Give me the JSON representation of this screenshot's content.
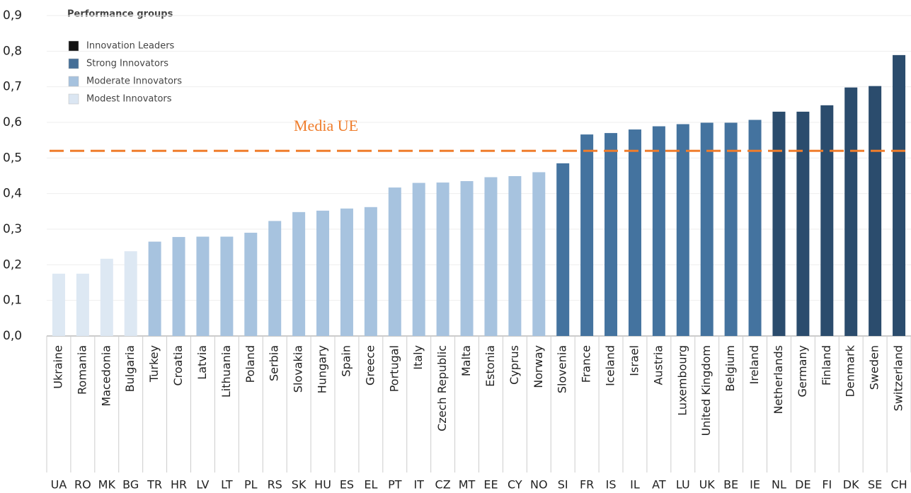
{
  "chart_data": {
    "type": "bar",
    "categories": [
      "Ukraine",
      "Romania",
      "Macedonia",
      "Bulgaria",
      "Turkey",
      "Croatia",
      "Latvia",
      "Lithuania",
      "Poland",
      "Serbia",
      "Slovakia",
      "Hungary",
      "Spain",
      "Greece",
      "Portugal",
      "Italy",
      "Czech Republic",
      "Malta",
      "Estonia",
      "Cyprus",
      "Norway",
      "Slovenia",
      "France",
      "Iceland",
      "Israel",
      "Austria",
      "Luxembourg",
      "United Kingdom",
      "Belgium",
      "Ireland",
      "Netherlands",
      "Germany",
      "Finland",
      "Denmark",
      "Sweden",
      "Switzerland"
    ],
    "codes": [
      "UA",
      "RO",
      "MK",
      "BG",
      "TR",
      "HR",
      "LV",
      "LT",
      "PL",
      "RS",
      "SK",
      "HU",
      "ES",
      "EL",
      "PT",
      "IT",
      "CZ",
      "MT",
      "EE",
      "CY",
      "NO",
      "SI",
      "FR",
      "IS",
      "IL",
      "AT",
      "LU",
      "UK",
      "BE",
      "IE",
      "NL",
      "DE",
      "FI",
      "DK",
      "SE",
      "CH"
    ],
    "values": [
      0.175,
      0.175,
      0.217,
      0.238,
      0.265,
      0.278,
      0.279,
      0.279,
      0.29,
      0.323,
      0.348,
      0.352,
      0.358,
      0.362,
      0.417,
      0.43,
      0.431,
      0.435,
      0.446,
      0.449,
      0.46,
      0.485,
      0.566,
      0.57,
      0.58,
      0.589,
      0.595,
      0.599,
      0.599,
      0.607,
      0.63,
      0.63,
      0.648,
      0.698,
      0.702,
      0.789
    ],
    "groups": [
      3,
      3,
      3,
      3,
      2,
      2,
      2,
      2,
      2,
      2,
      2,
      2,
      2,
      2,
      2,
      2,
      2,
      2,
      2,
      2,
      2,
      1,
      1,
      1,
      1,
      1,
      1,
      1,
      1,
      1,
      0,
      0,
      0,
      0,
      0,
      0
    ],
    "legend": {
      "title": "Performance groups",
      "items": [
        {
          "name": "Innovation Leaders",
          "color": "#111111",
          "bar_color": "#2b4c6d"
        },
        {
          "name": "Strong Innovators",
          "color": "#456f97",
          "bar_color": "#44739f"
        },
        {
          "name": "Moderate Innovators",
          "color": "#a6c2de",
          "bar_color": "#a7c3df"
        },
        {
          "name": "Modest Innovators",
          "color": "#dbe6f2",
          "bar_color": "#dde8f3"
        }
      ]
    },
    "reference_line": {
      "value": 0.52,
      "label": "Media UE",
      "color": "#ef7d2c"
    },
    "ylim": [
      0,
      0.9
    ],
    "yticks": [
      {
        "value": 0,
        "label": "0,0"
      },
      {
        "value": 0.1,
        "label": "0,1"
      },
      {
        "value": 0.2,
        "label": "0,2"
      },
      {
        "value": 0.3,
        "label": "0,3"
      },
      {
        "value": 0.4,
        "label": "0,4"
      },
      {
        "value": 0.5,
        "label": "0,5"
      },
      {
        "value": 0.6,
        "label": "0,6"
      },
      {
        "value": 0.7,
        "label": "0,7"
      },
      {
        "value": 0.8,
        "label": "0,8"
      },
      {
        "value": 0.9,
        "label": "0,9"
      }
    ],
    "grid": true
  }
}
